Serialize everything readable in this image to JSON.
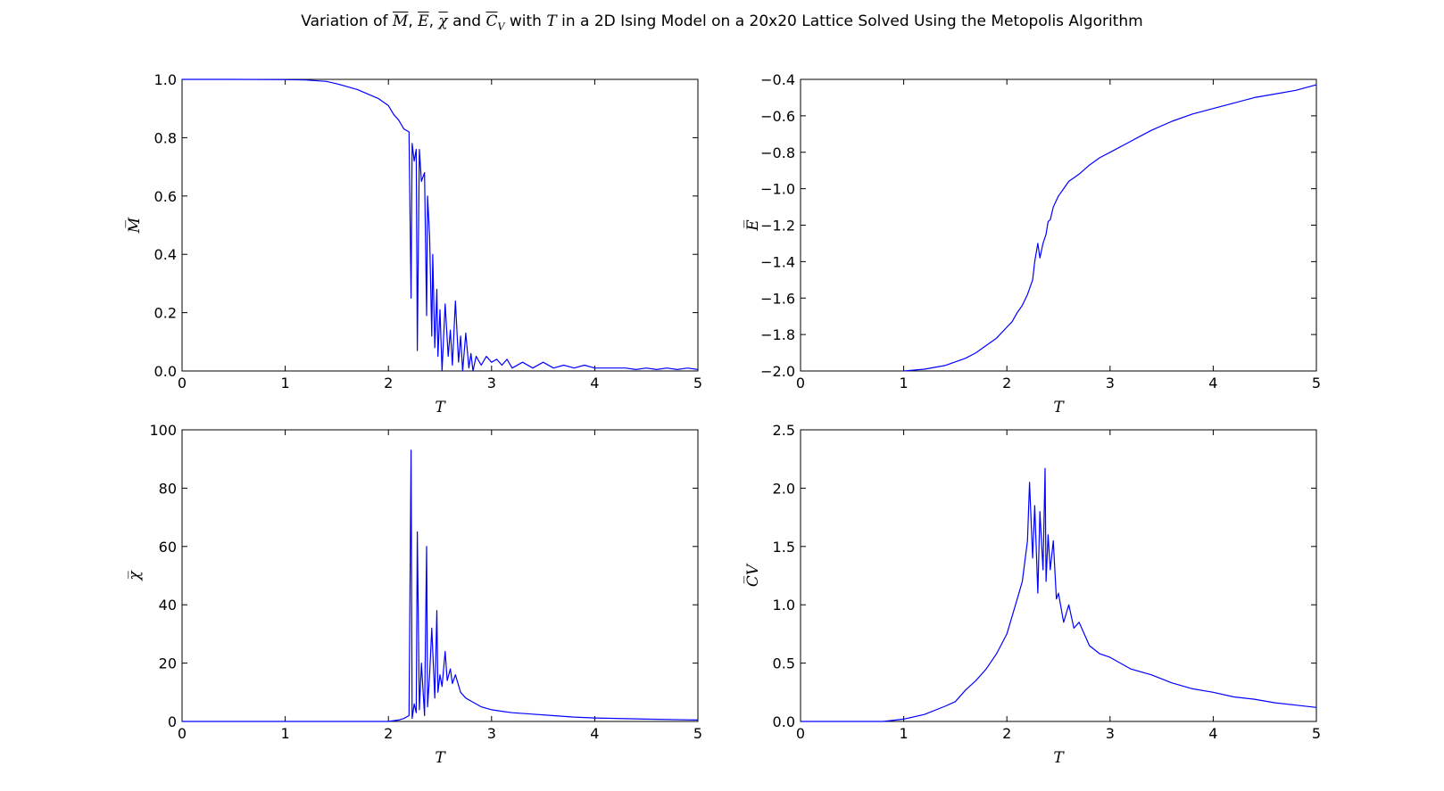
{
  "figure": {
    "title_parts": [
      "Variation of ",
      "M",
      ", ",
      "E",
      ", ",
      "χ",
      " and ",
      "C",
      "V",
      " with ",
      "T",
      " in a 2D Ising Model on a 20x20 Lattice Solved Using the Metopolis Algorithm"
    ],
    "line_color": "#0000ff"
  },
  "chart_data": [
    {
      "type": "line",
      "xlabel": "T",
      "ylabel": "M̅",
      "xlim": [
        0,
        5
      ],
      "ylim": [
        0,
        1.0
      ],
      "xticks": [
        "0",
        "1",
        "2",
        "3",
        "4",
        "5"
      ],
      "yticks": [
        "0.0",
        "0.2",
        "0.4",
        "0.6",
        "0.8",
        "1.0"
      ],
      "x": [
        0,
        0.5,
        1.0,
        1.2,
        1.4,
        1.5,
        1.6,
        1.7,
        1.8,
        1.9,
        2.0,
        2.05,
        2.1,
        2.15,
        2.2,
        2.22,
        2.23,
        2.25,
        2.27,
        2.28,
        2.3,
        2.32,
        2.35,
        2.37,
        2.38,
        2.4,
        2.42,
        2.43,
        2.45,
        2.47,
        2.48,
        2.5,
        2.52,
        2.55,
        2.58,
        2.6,
        2.62,
        2.65,
        2.68,
        2.7,
        2.72,
        2.75,
        2.78,
        2.8,
        2.82,
        2.85,
        2.9,
        2.95,
        3.0,
        3.05,
        3.1,
        3.15,
        3.2,
        3.3,
        3.4,
        3.5,
        3.6,
        3.7,
        3.8,
        3.9,
        4.0,
        4.1,
        4.2,
        4.3,
        4.4,
        4.5,
        4.6,
        4.7,
        4.8,
        4.9,
        5.0
      ],
      "y": [
        1.0,
        1.0,
        0.999,
        0.998,
        0.993,
        0.985,
        0.975,
        0.965,
        0.95,
        0.935,
        0.91,
        0.88,
        0.86,
        0.83,
        0.82,
        0.25,
        0.78,
        0.72,
        0.76,
        0.07,
        0.76,
        0.65,
        0.68,
        0.19,
        0.6,
        0.46,
        0.12,
        0.4,
        0.08,
        0.28,
        0.05,
        0.21,
        0.0,
        0.23,
        0.05,
        0.14,
        0.02,
        0.24,
        0.03,
        0.12,
        0.0,
        0.13,
        0.01,
        0.06,
        0.0,
        0.05,
        0.02,
        0.05,
        0.03,
        0.04,
        0.02,
        0.04,
        0.01,
        0.03,
        0.01,
        0.03,
        0.01,
        0.02,
        0.01,
        0.02,
        0.01,
        0.01,
        0.01,
        0.01,
        0.005,
        0.01,
        0.005,
        0.01,
        0.005,
        0.01,
        0.005
      ]
    },
    {
      "type": "line",
      "xlabel": "T",
      "ylabel": "E̅",
      "xlim": [
        0,
        5
      ],
      "ylim": [
        -2.0,
        -0.4
      ],
      "xticks": [
        "0",
        "1",
        "2",
        "3",
        "4",
        "5"
      ],
      "yticks": [
        "−2.0",
        "−1.8",
        "−1.6",
        "−1.4",
        "−1.2",
        "−1.0",
        "−0.8",
        "−0.6",
        "−0.4"
      ],
      "x": [
        1.0,
        1.2,
        1.4,
        1.5,
        1.6,
        1.7,
        1.8,
        1.9,
        2.0,
        2.05,
        2.1,
        2.15,
        2.2,
        2.25,
        2.27,
        2.3,
        2.32,
        2.35,
        2.38,
        2.4,
        2.42,
        2.45,
        2.5,
        2.55,
        2.6,
        2.7,
        2.8,
        2.9,
        3.0,
        3.2,
        3.4,
        3.6,
        3.8,
        4.0,
        4.2,
        4.4,
        4.6,
        4.8,
        5.0
      ],
      "y": [
        -2.0,
        -1.99,
        -1.97,
        -1.95,
        -1.93,
        -1.9,
        -1.86,
        -1.82,
        -1.76,
        -1.73,
        -1.68,
        -1.64,
        -1.58,
        -1.5,
        -1.4,
        -1.3,
        -1.38,
        -1.3,
        -1.25,
        -1.18,
        -1.17,
        -1.1,
        -1.04,
        -1.0,
        -0.96,
        -0.92,
        -0.87,
        -0.83,
        -0.8,
        -0.74,
        -0.68,
        -0.63,
        -0.59,
        -0.56,
        -0.53,
        -0.5,
        -0.48,
        -0.46,
        -0.43
      ]
    },
    {
      "type": "line",
      "xlabel": "T",
      "ylabel": "χ̅",
      "xlim": [
        0,
        5
      ],
      "ylim": [
        0,
        100
      ],
      "xticks": [
        "0",
        "1",
        "2",
        "3",
        "4",
        "5"
      ],
      "yticks": [
        "0",
        "20",
        "40",
        "60",
        "80",
        "100"
      ],
      "x": [
        0,
        1.0,
        2.0,
        2.1,
        2.15,
        2.2,
        2.22,
        2.23,
        2.25,
        2.27,
        2.28,
        2.3,
        2.32,
        2.35,
        2.37,
        2.38,
        2.4,
        2.42,
        2.45,
        2.47,
        2.48,
        2.5,
        2.52,
        2.55,
        2.57,
        2.6,
        2.62,
        2.65,
        2.7,
        2.75,
        2.8,
        2.85,
        2.9,
        3.0,
        3.1,
        3.2,
        3.4,
        3.6,
        3.8,
        4.0,
        4.5,
        5.0
      ],
      "y": [
        0,
        0,
        0,
        0.5,
        1,
        2,
        93,
        1,
        6,
        3,
        65,
        4,
        20,
        2,
        60,
        5,
        16,
        32,
        8,
        38,
        10,
        16,
        12,
        24,
        14,
        18,
        13,
        16,
        10,
        8,
        7,
        6,
        5,
        4,
        3.5,
        3,
        2.5,
        2,
        1.5,
        1.2,
        0.8,
        0.5
      ]
    },
    {
      "type": "line",
      "xlabel": "T",
      "ylabel": "C̅V",
      "xlim": [
        0,
        5
      ],
      "ylim": [
        0,
        2.5
      ],
      "xticks": [
        "0",
        "1",
        "2",
        "3",
        "4",
        "5"
      ],
      "yticks": [
        "0.0",
        "0.5",
        "1.0",
        "1.5",
        "2.0",
        "2.5"
      ],
      "x": [
        0,
        0.8,
        1.0,
        1.2,
        1.4,
        1.5,
        1.6,
        1.7,
        1.8,
        1.9,
        2.0,
        2.05,
        2.1,
        2.15,
        2.2,
        2.22,
        2.25,
        2.27,
        2.3,
        2.32,
        2.35,
        2.37,
        2.38,
        2.4,
        2.42,
        2.45,
        2.48,
        2.5,
        2.55,
        2.6,
        2.65,
        2.7,
        2.8,
        2.9,
        3.0,
        3.1,
        3.2,
        3.4,
        3.6,
        3.8,
        4.0,
        4.2,
        4.4,
        4.6,
        4.8,
        5.0
      ],
      "y": [
        0,
        0,
        0.02,
        0.06,
        0.13,
        0.17,
        0.27,
        0.35,
        0.45,
        0.58,
        0.75,
        0.9,
        1.05,
        1.2,
        1.55,
        2.05,
        1.4,
        1.85,
        1.1,
        1.8,
        1.3,
        2.17,
        1.2,
        1.6,
        1.3,
        1.55,
        1.05,
        1.1,
        0.85,
        1.0,
        0.8,
        0.85,
        0.65,
        0.58,
        0.55,
        0.5,
        0.45,
        0.4,
        0.33,
        0.28,
        0.25,
        0.21,
        0.19,
        0.16,
        0.14,
        0.12
      ]
    }
  ]
}
